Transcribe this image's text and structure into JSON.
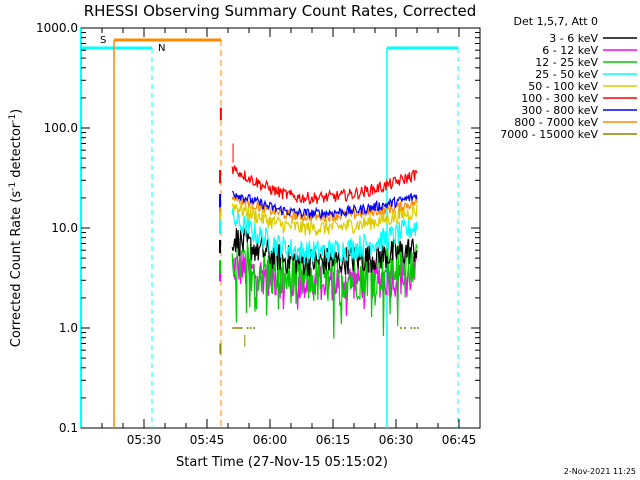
{
  "chart_data": {
    "type": "line",
    "title": "RHESSI Observing Summary Count Rates, Corrected",
    "xlabel": "Start Time (27-Nov-15 05:15:02)",
    "ylabel": "Corrected Count Rate (s",
    "ylabel_sup": "-1",
    "ylabel_tail": " detector",
    "ylabel_sup2": "-1",
    "ylabel_close": ")",
    "y_scale": "log",
    "ylim": [
      0.1,
      1000
    ],
    "xlim_minutes": [
      0,
      95
    ],
    "x_ticks": [
      {
        "minutes": 15,
        "label": "05:30"
      },
      {
        "minutes": 30,
        "label": "05:45"
      },
      {
        "minutes": 45,
        "label": "06:00"
      },
      {
        "minutes": 60,
        "label": "06:15"
      },
      {
        "minutes": 75,
        "label": "06:30"
      },
      {
        "minutes": 90,
        "label": "06:45"
      }
    ],
    "y_ticks": [
      {
        "value": 0.1,
        "label": "0.1"
      },
      {
        "value": 1,
        "label": "1.0"
      },
      {
        "value": 10,
        "label": "10.0"
      },
      {
        "value": 100,
        "label": "100.0"
      },
      {
        "value": 1000,
        "label": "1000.0"
      }
    ],
    "legend_title": "Det 1,5,7, Att 0",
    "series": [
      {
        "name": "3 - 6 keV",
        "color": "#000000",
        "level_start": 8.0,
        "level_min": 4.6,
        "level_end": 6.2,
        "noise": 0.15
      },
      {
        "name": "6 - 12 keV",
        "color": "#ff00ff",
        "level_start": 4.2,
        "level_min": 2.9,
        "level_end": 3.4,
        "noise": 0.2
      },
      {
        "name": "12 - 25 keV",
        "color": "#00cc00",
        "level_start": 5.0,
        "level_min": 3.0,
        "level_end": 5.2,
        "noise": 0.25
      },
      {
        "name": "25 - 50 keV",
        "color": "#00ffff",
        "level_start": 12.5,
        "level_min": 5.8,
        "level_end": 10.5,
        "noise": 0.12
      },
      {
        "name": "50 - 100 keV",
        "color": "#ddcc00",
        "level_start": 17.0,
        "level_min": 10.0,
        "level_end": 15.0,
        "noise": 0.08
      },
      {
        "name": "100 - 300 keV",
        "color": "#ff0000",
        "level_start": 40.0,
        "level_min": 20.0,
        "level_end": 35.0,
        "noise": 0.06
      },
      {
        "name": "300 - 800 keV",
        "color": "#0000ff",
        "level_start": 23.0,
        "level_min": 14.0,
        "level_end": 21.0,
        "noise": 0.05
      },
      {
        "name": "800 - 7000 keV",
        "color": "#ff8800",
        "level_start": 21.0,
        "level_min": 13.0,
        "level_end": 18.0,
        "noise": 0.05
      },
      {
        "name": "7000 - 15000 keV",
        "color": "#888800",
        "level_start": 1.0,
        "level_min": 1.0,
        "level_end": 1.0,
        "noise": 0.0
      }
    ],
    "data_start_minutes": 36,
    "data_end_minutes": 80,
    "annotations": [
      {
        "label": "S",
        "color": "#ff8800"
      },
      {
        "label": "N",
        "color": "#00ffff"
      }
    ],
    "footer_date": "2-Nov-2021 11:25"
  }
}
